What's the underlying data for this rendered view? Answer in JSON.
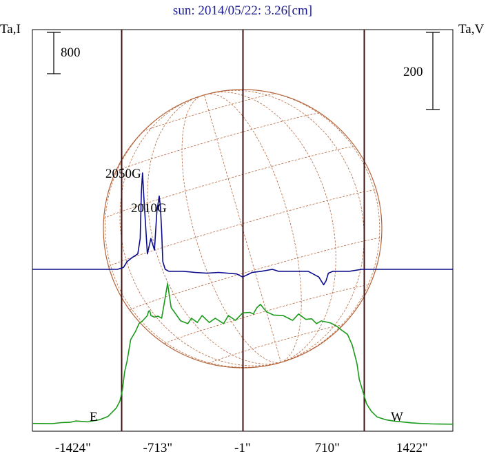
{
  "chart_data": {
    "type": "line",
    "title": "sun: 2014/05/22: 3.26[cm]",
    "left_axis_label": "Ta,I",
    "right_axis_label": "Ta,V",
    "scale_bars": [
      {
        "label": "800",
        "axis": "left"
      },
      {
        "label": "200",
        "axis": "right"
      }
    ],
    "x_tick_labels": [
      "-1424\"",
      "-713\"",
      "-1\"",
      "710\"",
      "1422\""
    ],
    "x_ticks_arcsec": [
      -1424,
      -713,
      -1,
      710,
      1422
    ],
    "xlim_arcsec": [
      -1765,
      1765
    ],
    "limb_markers": [
      {
        "label": "E",
        "x_arcsec": -1020
      },
      {
        "label": "W",
        "x_arcsec": 1020
      }
    ],
    "annotations": [
      {
        "label": "2050G",
        "near_x_arcsec": -870
      },
      {
        "label": "2010G",
        "near_x_arcsec": -670
      }
    ],
    "colors": {
      "title": "#1a1a8c",
      "intensity": "#1a9a1a",
      "polarization": "#0a0a8c",
      "disk": "#b5653a",
      "limb_lines": "#3a1010",
      "frame": "#000000"
    },
    "series": [
      {
        "name": "Ta,I",
        "axis": "left",
        "color": "#1a9a1a",
        "x": [
          -1765,
          -1600,
          -1520,
          -1450,
          -1400,
          -1300,
          -1200,
          -1130,
          -1090,
          -1060,
          -1030,
          -1010,
          -990,
          -970,
          -940,
          -900,
          -870,
          -840,
          -800,
          -790,
          -780,
          -770,
          -740,
          -710,
          -680,
          -660,
          -630,
          -600,
          -520,
          -460,
          -430,
          -380,
          -340,
          -280,
          -230,
          -160,
          -120,
          -60,
          0,
          60,
          90,
          120,
          150,
          200,
          260,
          340,
          420,
          470,
          530,
          580,
          620,
          660,
          700,
          740,
          790,
          830,
          880,
          920,
          960,
          980,
          1000,
          1020,
          1040,
          1080,
          1130,
          1200,
          1280,
          1350,
          1420,
          1500,
          1600,
          1765
        ],
        "y": [
          30,
          25,
          45,
          50,
          75,
          60,
          100,
          160,
          250,
          320,
          450,
          650,
          1000,
          1200,
          1600,
          1750,
          1900,
          1950,
          2050,
          2130,
          2140,
          2050,
          2020,
          2040,
          2000,
          2250,
          2650,
          2200,
          1950,
          1900,
          2000,
          1920,
          2050,
          1920,
          2000,
          1900,
          2050,
          1960,
          2100,
          2110,
          2080,
          2200,
          2260,
          2120,
          2060,
          2050,
          1960,
          2080,
          1980,
          1990,
          1900,
          1950,
          1930,
          1910,
          1850,
          1780,
          1700,
          1500,
          1150,
          850,
          700,
          550,
          400,
          260,
          150,
          100,
          70,
          55,
          40,
          28,
          20,
          15
        ]
      },
      {
        "name": "Ta,V",
        "axis": "right",
        "color": "#0a0a8c",
        "x": [
          -1765,
          -1600,
          -1500,
          -1300,
          -1200,
          -1100,
          -1050,
          -1000,
          -970,
          -930,
          -880,
          -860,
          -850,
          -840,
          -830,
          -800,
          -770,
          -740,
          -720,
          -700,
          -690,
          -680,
          -670,
          -650,
          -620,
          -580,
          -500,
          -400,
          -300,
          -200,
          -50,
          0,
          80,
          160,
          250,
          300,
          400,
          550,
          640,
          680,
          700,
          720,
          760,
          820,
          900,
          1000,
          1100,
          1200,
          1400,
          1600,
          1765
        ],
        "y": [
          0,
          0,
          0,
          0,
          0,
          0,
          0,
          5,
          20,
          30,
          40,
          80,
          200,
          250,
          190,
          40,
          80,
          50,
          150,
          190,
          160,
          100,
          20,
          0,
          -5,
          -5,
          -5,
          -8,
          -10,
          -8,
          -12,
          -20,
          -8,
          -5,
          0,
          -5,
          -5,
          -5,
          -20,
          -40,
          -30,
          -10,
          -5,
          -5,
          -5,
          0,
          0,
          0,
          0,
          0,
          0
        ]
      }
    ],
    "yscales": {
      "intensity_per_800_px": 62,
      "polarization_per_200_px": 112
    }
  }
}
